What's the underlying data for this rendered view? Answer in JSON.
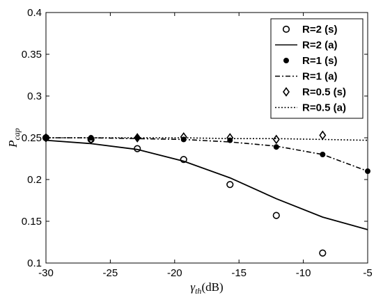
{
  "chart_data": {
    "type": "line",
    "xlabel": "γth(dB)",
    "xlabel_main": "γ",
    "xlabel_sub": "th",
    "xlabel_unit": "(dB)",
    "ylabel": "Pcap",
    "ylabel_main": "P",
    "ylabel_sub": "cap",
    "xlim": [
      -30,
      -5
    ],
    "ylim": [
      0.1,
      0.4
    ],
    "xticks": [
      -30,
      -25,
      -20,
      -15,
      -10,
      -5
    ],
    "yticks": [
      0.1,
      0.15,
      0.2,
      0.25,
      0.3,
      0.35,
      0.4
    ],
    "xtick_labels": [
      "-30",
      "-25",
      "-20",
      "-15",
      "-10",
      "-5"
    ],
    "ytick_labels": [
      "0.1",
      "0.15",
      "0.2",
      "0.25",
      "0.3",
      "0.35",
      "0.4"
    ],
    "grid": false,
    "legend_position": "top-right",
    "series": [
      {
        "name": "R=2 (s)",
        "style": "marker",
        "marker": "circle",
        "x": [
          -30,
          -26.5,
          -22.9,
          -19.3,
          -15.7,
          -12.1,
          -8.5
        ],
        "y": [
          0.25,
          0.248,
          0.237,
          0.224,
          0.194,
          0.157,
          0.112
        ]
      },
      {
        "name": "R=2 (a)",
        "style": "line",
        "dash": "solid",
        "x": [
          -30,
          -26.5,
          -22.9,
          -19.3,
          -15.7,
          -12.1,
          -8.5,
          -5
        ],
        "y": [
          0.247,
          0.243,
          0.236,
          0.222,
          0.202,
          0.177,
          0.155,
          0.14
        ]
      },
      {
        "name": "R=1 (s)",
        "style": "marker",
        "marker": "star",
        "x": [
          -30,
          -26.5,
          -22.9,
          -19.3,
          -15.7,
          -12.1,
          -8.5,
          -5
        ],
        "y": [
          0.25,
          0.25,
          0.25,
          0.248,
          0.247,
          0.239,
          0.23,
          0.21
        ]
      },
      {
        "name": "R=1 (a)",
        "style": "line",
        "dash": "dashdot",
        "x": [
          -30,
          -26.5,
          -22.9,
          -19.3,
          -15.7,
          -12.1,
          -8.5,
          -5
        ],
        "y": [
          0.25,
          0.25,
          0.249,
          0.248,
          0.245,
          0.24,
          0.23,
          0.21
        ]
      },
      {
        "name": "R=0.5 (s)",
        "style": "marker",
        "marker": "diamond",
        "x": [
          -30,
          -26.5,
          -22.9,
          -19.3,
          -15.7,
          -12.1,
          -8.5
        ],
        "y": [
          0.25,
          0.248,
          0.25,
          0.251,
          0.25,
          0.248,
          0.253
        ]
      },
      {
        "name": "R=0.5 (a)",
        "style": "line",
        "dash": "dotted",
        "x": [
          -30,
          -26.5,
          -22.9,
          -19.3,
          -15.7,
          -12.1,
          -8.5,
          -5
        ],
        "y": [
          0.25,
          0.25,
          0.25,
          0.25,
          0.249,
          0.249,
          0.248,
          0.247
        ]
      }
    ]
  }
}
